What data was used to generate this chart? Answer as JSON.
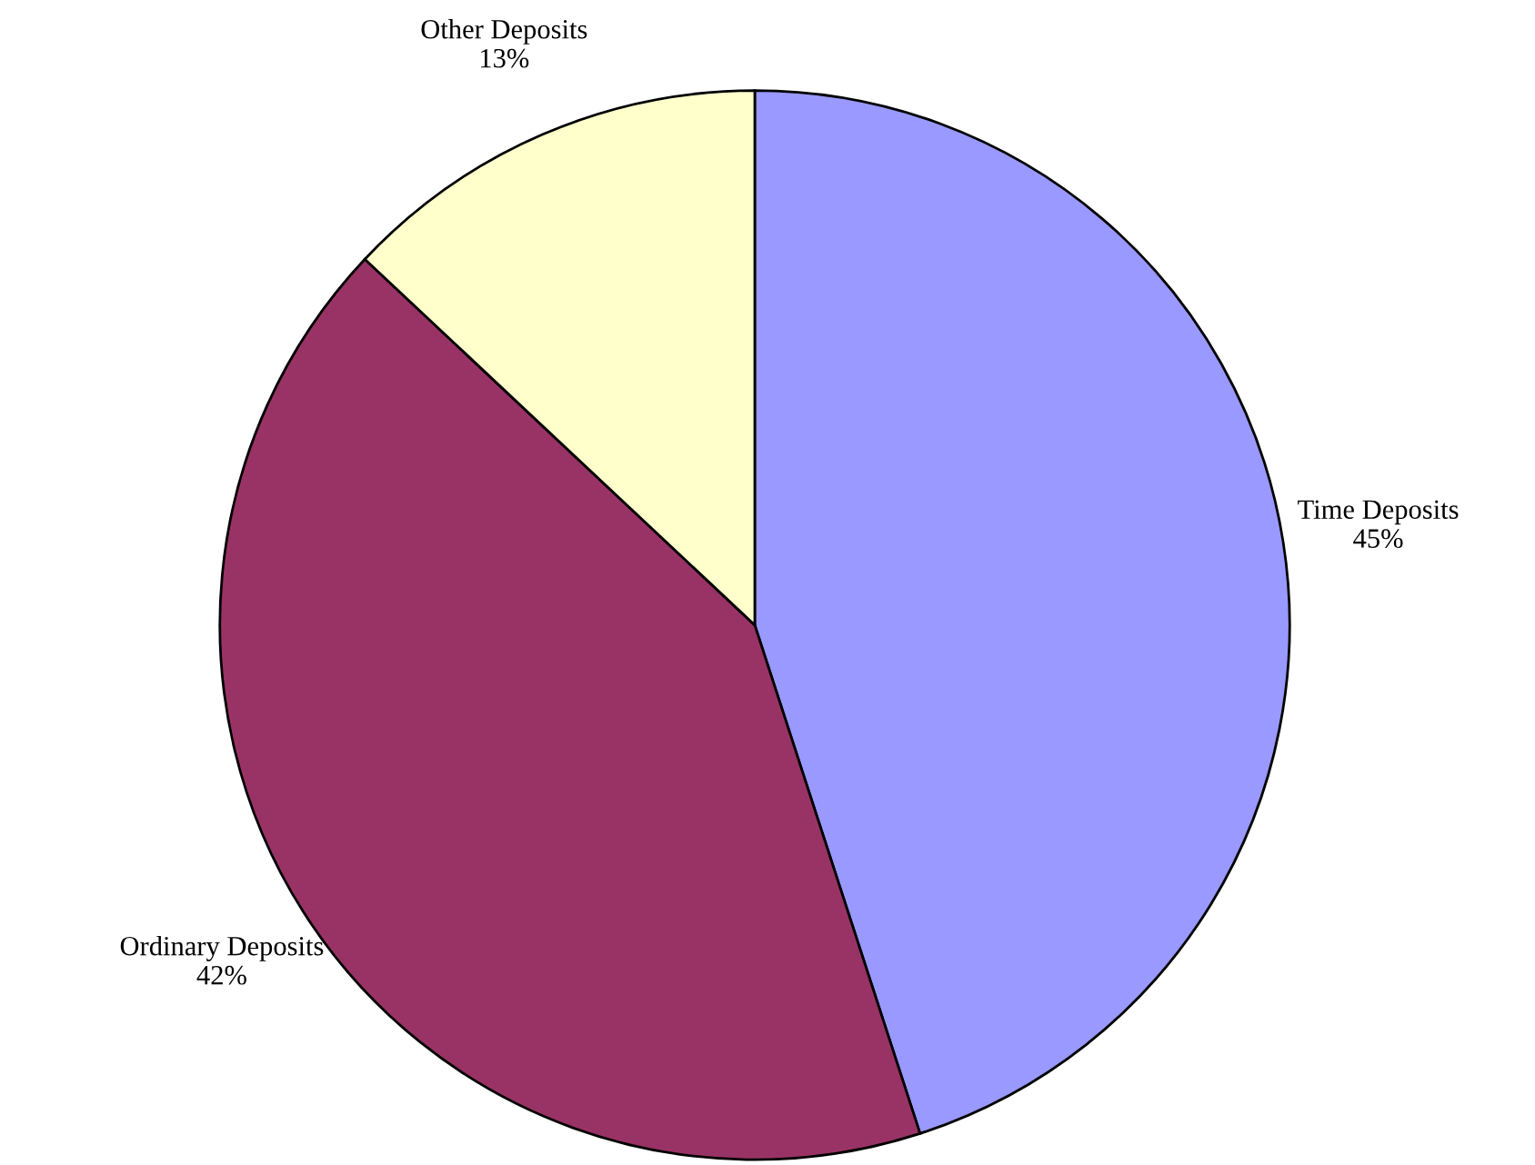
{
  "chart_data": {
    "type": "pie",
    "categories": [
      "Time Deposits",
      "Ordinary Deposits",
      "Other Deposits"
    ],
    "values": [
      45,
      42,
      13
    ],
    "colors": [
      "#9999ff",
      "#993366",
      "#ffffcc"
    ],
    "value_labels": [
      "45%",
      "42%",
      "13%"
    ]
  }
}
